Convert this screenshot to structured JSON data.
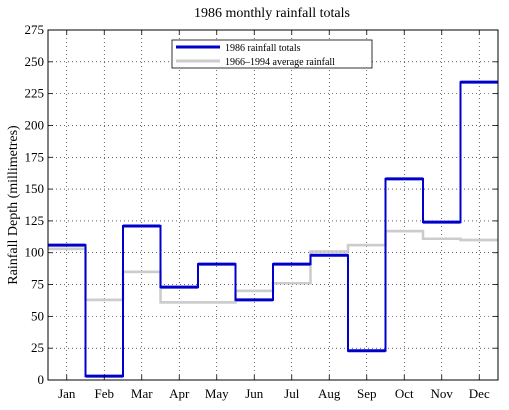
{
  "chart_data": {
    "type": "line",
    "step": true,
    "title": "1986 monthly rainfall totals",
    "xlabel": "",
    "ylabel": "Rainfall Depth (millimetres)",
    "categories": [
      "Jan",
      "Feb",
      "Mar",
      "Apr",
      "May",
      "Jun",
      "Jul",
      "Aug",
      "Sep",
      "Oct",
      "Nov",
      "Dec"
    ],
    "ylim": [
      0,
      275
    ],
    "yticks": [
      0,
      25,
      50,
      75,
      100,
      125,
      150,
      175,
      200,
      225,
      250,
      275
    ],
    "grid": true,
    "legend_position": "top-center",
    "series": [
      {
        "name": "1986 rainfall totals",
        "color": "#0000cc",
        "values": [
          106,
          3,
          121,
          73,
          91,
          63,
          91,
          98,
          23,
          158,
          124,
          234
        ]
      },
      {
        "name": "1966–1994 average rainfall",
        "color": "#cccccc",
        "values": [
          103,
          63,
          85,
          61,
          61,
          70,
          76,
          101,
          106,
          117,
          111,
          110
        ]
      }
    ]
  }
}
